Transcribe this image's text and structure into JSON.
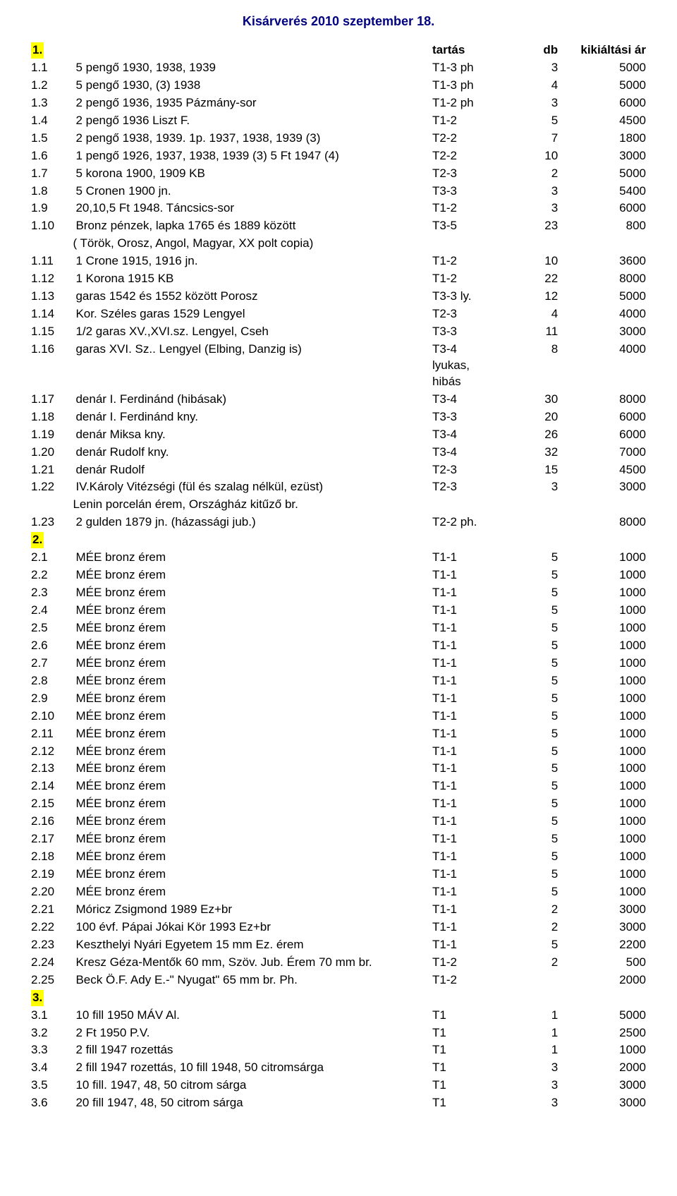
{
  "title": "Kisárverés  2010 szeptember  18.",
  "headers": {
    "tartas": "tartás",
    "db": "db",
    "price": "kikiáltási ár"
  },
  "sections": [
    {
      "num": "1.",
      "highlight": true,
      "showHeaders": true,
      "rows": [
        {
          "n": "1.1",
          "d": "5 pengő 1930, 1938, 1939",
          "t": "T1-3 ph",
          "db": "3",
          "p": "5000"
        },
        {
          "n": "1.2",
          "d": "5 pengő 1930, (3) 1938",
          "t": "T1-3 ph",
          "db": "4",
          "p": "5000"
        },
        {
          "n": "1.3",
          "d": "2 pengő 1936, 1935 Pázmány-sor",
          "t": "T1-2 ph",
          "db": "3",
          "p": "6000"
        },
        {
          "n": "1.4",
          "d": "2 pengő 1936 Liszt F.",
          "t": "T1-2",
          "db": "5",
          "p": "4500"
        },
        {
          "n": "1.5",
          "d": "2 pengő  1938, 1939. 1p.  1937, 1938, 1939 (3)",
          "t": "T2-2",
          "db": "7",
          "p": "1800"
        },
        {
          "n": "1.6",
          "d": "1 pengő 1926, 1937, 1938, 1939 (3)  5 Ft  1947 (4)",
          "t": "T2-2",
          "db": "10",
          "p": "3000"
        },
        {
          "n": "1.7",
          "d": "5 korona 1900, 1909 KB",
          "t": "T2-3",
          "db": "2",
          "p": "5000"
        },
        {
          "n": "1.8",
          "d": "5 Cronen 1900 jn.",
          "t": "T3-3",
          "db": "3",
          "p": "5400"
        },
        {
          "n": "1.9",
          "d": "20,10,5 Ft  1948. Táncsics-sor",
          "t": "T1-2",
          "db": "3",
          "p": "6000"
        },
        {
          "n": "1.10",
          "d": "Bronz pénzek, lapka 1765 és 1889 között",
          "t": "T3-5",
          "db": "23",
          "p": "800",
          "sub": "( Török, Orosz, Angol, Magyar, XX polt copia)"
        },
        {
          "n": "1.11",
          "d": "1 Crone 1915, 1916 jn.",
          "t": "T1-2",
          "db": "10",
          "p": "3600"
        },
        {
          "n": "1.12",
          "d": "1 Korona  1915  KB",
          "t": "T1-2",
          "db": "22",
          "p": "8000"
        },
        {
          "n": "1.13",
          "d": "garas  1542 és 1552 között Porosz",
          "t": "T3-3 ly.",
          "db": "12",
          "p": "5000"
        },
        {
          "n": "1.14",
          "d": "Kor. Széles garas   1529   Lengyel",
          "t": "T2-3",
          "db": "4",
          "p": "4000"
        },
        {
          "n": "1.15",
          "d": "1/2 garas XV.,XVI.sz.  Lengyel, Cseh",
          "t": "T3-3",
          "db": "11",
          "p": "3000"
        },
        {
          "n": "1.16",
          "d": "garas XVI. Sz.. Lengyel (Elbing, Danzig is)",
          "t": "T3-4\nlyukas,\nhibás",
          "db": "8",
          "p": "4000"
        },
        {
          "n": "1.17",
          "d": "denár I. Ferdinánd  (hibásak)",
          "t": "T3-4",
          "db": "30",
          "p": "8000"
        },
        {
          "n": "1.18",
          "d": "denár I. Ferdinánd          kny.",
          "t": "T3-3",
          "db": "20",
          "p": "6000"
        },
        {
          "n": "1.19",
          "d": "denár Miksa                   kny.",
          "t": "T3-4",
          "db": "26",
          "p": "6000"
        },
        {
          "n": "1.20",
          "d": "denár Rudolf                  kny.",
          "t": "T3-4",
          "db": "32",
          "p": "7000"
        },
        {
          "n": "1.21",
          "d": "denár Rudolf",
          "t": "T2-3",
          "db": "15",
          "p": "4500"
        },
        {
          "n": "1.22",
          "d": "IV.Károly Vitézségi (fül és szalag nélkül, ezüst)",
          "t": "T2-3",
          "db": "3",
          "p": "3000",
          "sub": "Lenin porcelán érem, Országház kitűző br."
        },
        {
          "n": "1.23",
          "d": "2 gulden 1879 jn. (házassági jub.)",
          "t": "T2-2 ph.",
          "db": "",
          "p": "8000"
        }
      ]
    },
    {
      "num": "2.",
      "highlight": true,
      "rows": [
        {
          "n": "2.1",
          "d": "MÉE bronz érem",
          "t": "T1-1",
          "db": "5",
          "p": "1000"
        },
        {
          "n": "2.2",
          "d": "MÉE bronz érem",
          "t": "T1-1",
          "db": "5",
          "p": "1000"
        },
        {
          "n": "2.3",
          "d": "MÉE bronz érem",
          "t": "T1-1",
          "db": "5",
          "p": "1000"
        },
        {
          "n": "2.4",
          "d": "MÉE bronz érem",
          "t": "T1-1",
          "db": "5",
          "p": "1000"
        },
        {
          "n": "2.5",
          "d": "MÉE bronz érem",
          "t": "T1-1",
          "db": "5",
          "p": "1000"
        },
        {
          "n": "2.6",
          "d": "MÉE bronz érem",
          "t": "T1-1",
          "db": "5",
          "p": "1000"
        },
        {
          "n": "2.7",
          "d": "MÉE bronz érem",
          "t": "T1-1",
          "db": "5",
          "p": "1000"
        },
        {
          "n": "2.8",
          "d": "MÉE bronz érem",
          "t": "T1-1",
          "db": "5",
          "p": "1000"
        },
        {
          "n": "2.9",
          "d": "MÉE bronz érem",
          "t": "T1-1",
          "db": "5",
          "p": "1000"
        },
        {
          "n": "2.10",
          "d": "MÉE bronz érem",
          "t": "T1-1",
          "db": "5",
          "p": "1000"
        },
        {
          "n": "2.11",
          "d": "MÉE bronz érem",
          "t": "T1-1",
          "db": "5",
          "p": "1000"
        },
        {
          "n": "2.12",
          "d": "MÉE bronz érem",
          "t": "T1-1",
          "db": "5",
          "p": "1000"
        },
        {
          "n": "2.13",
          "d": "MÉE bronz érem",
          "t": "T1-1",
          "db": "5",
          "p": "1000"
        },
        {
          "n": "2.14",
          "d": "MÉE bronz érem",
          "t": "T1-1",
          "db": "5",
          "p": "1000"
        },
        {
          "n": "2.15",
          "d": "MÉE bronz érem",
          "t": "T1-1",
          "db": "5",
          "p": "1000"
        },
        {
          "n": "2.16",
          "d": "MÉE bronz érem",
          "t": "T1-1",
          "db": "5",
          "p": "1000"
        },
        {
          "n": "2.17",
          "d": "MÉE bronz érem",
          "t": "T1-1",
          "db": "5",
          "p": "1000"
        },
        {
          "n": "2.18",
          "d": "MÉE bronz érem",
          "t": "T1-1",
          "db": "5",
          "p": "1000"
        },
        {
          "n": "2.19",
          "d": "MÉE bronz érem",
          "t": "T1-1",
          "db": "5",
          "p": "1000"
        },
        {
          "n": "2.20",
          "d": "MÉE bronz érem",
          "t": "T1-1",
          "db": "5",
          "p": "1000"
        },
        {
          "n": "2.21",
          "d": "Móricz Zsigmond  1989  Ez+br",
          "t": "T1-1",
          "db": "2",
          "p": "3000"
        },
        {
          "n": "2.22",
          "d": "100 évf. Pápai  Jókai Kör  1993  Ez+br",
          "t": "T1-1",
          "db": "2",
          "p": "3000"
        },
        {
          "n": "2.23",
          "d": "Keszthelyi Nyári Egyetem  15 mm Ez. érem",
          "t": "T1-1",
          "db": "5",
          "p": "2200"
        },
        {
          "n": "2.24",
          "d": "Kresz Géza-Mentők 60 mm, Szöv. Jub. Érem 70 mm br.",
          "t": "T1-2",
          "db": "2",
          "p": "500"
        },
        {
          "n": "2.25",
          "d": "Beck Ö.F.  Ady E.-\" Nyugat\"  65 mm br.   Ph.",
          "t": "T1-2",
          "db": "",
          "p": "2000"
        }
      ]
    },
    {
      "num": "3.",
      "highlight": true,
      "rows": [
        {
          "n": "3.1",
          "d": "10 fill 1950  MÁV  Al.",
          "t": "T1",
          "db": "1",
          "p": "5000"
        },
        {
          "n": "3.2",
          "d": "2 Ft  1950  P.V.",
          "t": "T1",
          "db": "1",
          "p": "2500"
        },
        {
          "n": "3.3",
          "d": "2 fill  1947  rozettás",
          "t": "T1",
          "db": "1",
          "p": "1000"
        },
        {
          "n": "3.4",
          "d": "2 fill 1947  rozettás, 10 fill 1948, 50 citromsárga",
          "t": "T1",
          "db": "3",
          "p": "2000"
        },
        {
          "n": "3.5",
          "d": "10 fill. 1947, 48, 50  citrom sárga",
          "t": "T1",
          "db": "3",
          "p": "3000"
        },
        {
          "n": "3.6",
          "d": "20 fill 1947, 48, 50  citrom sárga",
          "t": "T1",
          "db": "3",
          "p": "3000"
        }
      ]
    }
  ]
}
